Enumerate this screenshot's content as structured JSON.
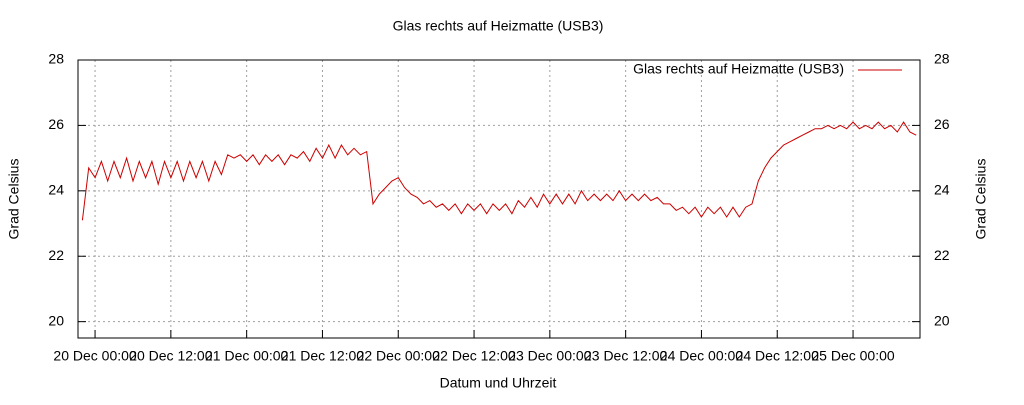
{
  "chart_data": {
    "type": "line",
    "title": "Glas rechts auf Heizmatte (USB3)",
    "x_label": "Datum und Uhrzeit",
    "y_label": "Grad Celsius",
    "y2_label": "Grad Celsius",
    "xlim": [
      -2.7,
      130.6
    ],
    "xticks": [
      {
        "value": 0,
        "label": "20 Dec 00:00"
      },
      {
        "value": 12,
        "label": "20 Dec 12:00"
      },
      {
        "value": 24,
        "label": "21 Dec 00:00"
      },
      {
        "value": 36,
        "label": "21 Dec 12:00"
      },
      {
        "value": 48,
        "label": "22 Dec 00:00"
      },
      {
        "value": 60,
        "label": "22 Dec 12:00"
      },
      {
        "value": 72,
        "label": "23 Dec 00:00"
      },
      {
        "value": 84,
        "label": "23 Dec 12:00"
      },
      {
        "value": 96,
        "label": "24 Dec 00:00"
      },
      {
        "value": 108,
        "label": "24 Dec 12:00"
      },
      {
        "value": 120,
        "label": "25 Dec 00:00"
      }
    ],
    "ylim": [
      19.5,
      28
    ],
    "yticks": [
      20,
      22,
      24,
      26,
      28
    ],
    "y2lim": [
      19.5,
      28
    ],
    "y2ticks": [
      20,
      22,
      24,
      26,
      28
    ],
    "grid": true,
    "legend": "upper right",
    "x": [
      -2,
      -1,
      0,
      1,
      2,
      3,
      4,
      5,
      6,
      7,
      8,
      9,
      10,
      11,
      12,
      13,
      14,
      15,
      16,
      17,
      18,
      19,
      20,
      21,
      22,
      23,
      24,
      25,
      26,
      27,
      28,
      29,
      30,
      31,
      32,
      33,
      34,
      35,
      36,
      37,
      38,
      39,
      40,
      41,
      42,
      43,
      44,
      45,
      46,
      47,
      48,
      49,
      50,
      51,
      52,
      53,
      54,
      55,
      56,
      57,
      58,
      59,
      60,
      61,
      62,
      63,
      64,
      65,
      66,
      67,
      68,
      69,
      70,
      71,
      72,
      73,
      74,
      75,
      76,
      77,
      78,
      79,
      80,
      81,
      82,
      83,
      84,
      85,
      86,
      87,
      88,
      89,
      90,
      91,
      92,
      93,
      94,
      95,
      96,
      97,
      98,
      99,
      100,
      101,
      102,
      103,
      104,
      105,
      106,
      107,
      108,
      109,
      110,
      111,
      112,
      113,
      114,
      115,
      116,
      117,
      118,
      119,
      120,
      121,
      122,
      123,
      124,
      125,
      126,
      127,
      128,
      129,
      130
    ],
    "series": [
      {
        "name": "Glas rechts auf Heizmatte (USB3)",
        "color": "#cc0000",
        "values": [
          23.1,
          24.7,
          24.4,
          24.9,
          24.3,
          24.9,
          24.4,
          25.0,
          24.3,
          24.9,
          24.4,
          24.9,
          24.2,
          24.9,
          24.4,
          24.9,
          24.3,
          24.9,
          24.4,
          24.9,
          24.3,
          24.9,
          24.5,
          25.1,
          25.0,
          25.1,
          24.9,
          25.1,
          24.8,
          25.1,
          24.9,
          25.1,
          24.8,
          25.1,
          25.0,
          25.2,
          24.9,
          25.3,
          25.0,
          25.4,
          25.0,
          25.4,
          25.1,
          25.3,
          25.1,
          25.2,
          23.6,
          23.9,
          24.1,
          24.3,
          24.4,
          24.1,
          23.9,
          23.8,
          23.6,
          23.7,
          23.5,
          23.6,
          23.4,
          23.6,
          23.3,
          23.6,
          23.4,
          23.6,
          23.3,
          23.6,
          23.4,
          23.6,
          23.3,
          23.7,
          23.5,
          23.8,
          23.5,
          23.9,
          23.6,
          23.9,
          23.6,
          23.9,
          23.6,
          24.0,
          23.7,
          23.9,
          23.7,
          23.9,
          23.7,
          24.0,
          23.7,
          23.9,
          23.7,
          23.9,
          23.7,
          23.8,
          23.6,
          23.6,
          23.4,
          23.5,
          23.3,
          23.5,
          23.2,
          23.5,
          23.3,
          23.5,
          23.2,
          23.5,
          23.2,
          23.5,
          23.6,
          24.3,
          24.7,
          25.0,
          25.2,
          25.4,
          25.5,
          25.6,
          25.7,
          25.8,
          25.9,
          25.9,
          26.0,
          25.9,
          26.0,
          25.9,
          26.1,
          25.9,
          26.0,
          25.9,
          26.1,
          25.9,
          26.0,
          25.8,
          26.1,
          25.8,
          25.7
        ]
      }
    ]
  }
}
